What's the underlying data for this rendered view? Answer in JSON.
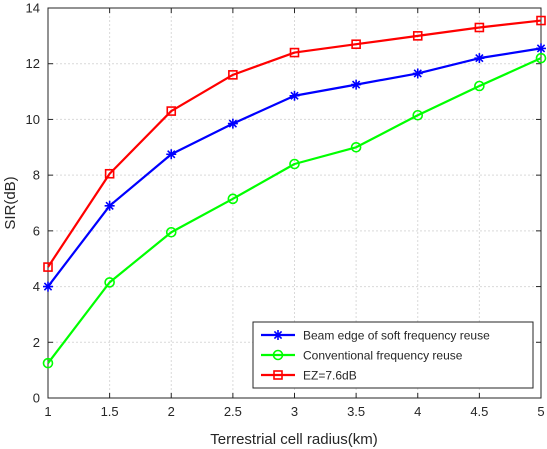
{
  "chart_data": {
    "type": "line",
    "xlabel": "Terrestrial cell radius(km)",
    "ylabel": "SIR(dB)",
    "xlim": [
      1,
      5
    ],
    "ylim": [
      0,
      14
    ],
    "x": [
      1,
      1.5,
      2,
      2.5,
      3,
      3.5,
      4,
      4.5,
      5
    ],
    "x_ticks": [
      "1",
      "1.5",
      "2",
      "2.5",
      "3",
      "3.5",
      "4",
      "4.5",
      "5"
    ],
    "y_ticks": [
      "0",
      "2",
      "4",
      "6",
      "8",
      "10",
      "12",
      "14"
    ],
    "grid": true,
    "legend_position": "bottom-right",
    "series": [
      {
        "name": "Beam edge of soft frequency reuse",
        "values": [
          4.0,
          6.9,
          8.75,
          9.85,
          10.85,
          11.25,
          11.65,
          12.2,
          12.55
        ],
        "color": "#0000ff",
        "marker": "asterisk"
      },
      {
        "name": "Conventional frequency reuse",
        "values": [
          1.25,
          4.15,
          5.95,
          7.15,
          8.4,
          9.0,
          10.15,
          11.2,
          12.2
        ],
        "color": "#00ff00",
        "marker": "circle"
      },
      {
        "name": "EZ=7.6dB",
        "values": [
          4.7,
          8.05,
          10.3,
          11.6,
          12.4,
          12.7,
          13.0,
          13.3,
          13.55
        ],
        "color": "#ff0000",
        "marker": "square"
      }
    ]
  }
}
